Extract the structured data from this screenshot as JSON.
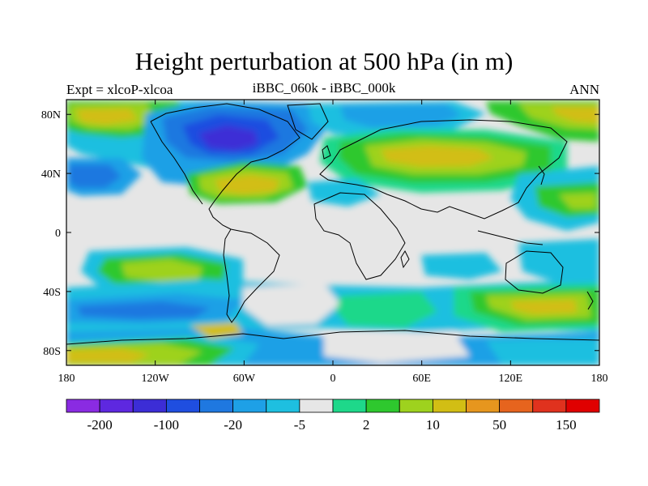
{
  "title": "Height perturbation at 500 hPa (in m)",
  "subtitle_left": "Expt = xlcoP-xlcoa",
  "subtitle_center": "iBBC_060k - iBBC_000k",
  "subtitle_right": "ANN",
  "axes": {
    "x_ticks": [
      {
        "value": -180,
        "label": "180"
      },
      {
        "value": -120,
        "label": "120W"
      },
      {
        "value": -60,
        "label": "60W"
      },
      {
        "value": 0,
        "label": "0"
      },
      {
        "value": 60,
        "label": "60E"
      },
      {
        "value": 120,
        "label": "120E"
      },
      {
        "value": 180,
        "label": "180"
      }
    ],
    "y_ticks": [
      {
        "value": 80,
        "label": "80N"
      },
      {
        "value": 40,
        "label": "40N"
      },
      {
        "value": 0,
        "label": "0"
      },
      {
        "value": -40,
        "label": "40S"
      },
      {
        "value": -80,
        "label": "80S"
      }
    ],
    "lon_range": [
      -180,
      180
    ],
    "lat_range": [
      -90,
      90
    ]
  },
  "colorbar": {
    "colors": [
      "#8a2be2",
      "#5e28e0",
      "#3c2dd6",
      "#1f4ee0",
      "#1f78e0",
      "#1ea0e6",
      "#1ebfe0",
      "#e6e6e6",
      "#1ed88a",
      "#2ec82e",
      "#9ed21e",
      "#d2be14",
      "#e6961e",
      "#e6641e",
      "#e0321e",
      "#e00000"
    ],
    "labels": [
      {
        "boundary": 1,
        "text": "-200"
      },
      {
        "boundary": 3,
        "text": "-100"
      },
      {
        "boundary": 5,
        "text": "-20"
      },
      {
        "boundary": 7,
        "text": "-5"
      },
      {
        "boundary": 9,
        "text": "2"
      },
      {
        "boundary": 11,
        "text": "10"
      },
      {
        "boundary": 13,
        "text": "50"
      },
      {
        "boundary": 15,
        "text": "150"
      }
    ]
  }
}
